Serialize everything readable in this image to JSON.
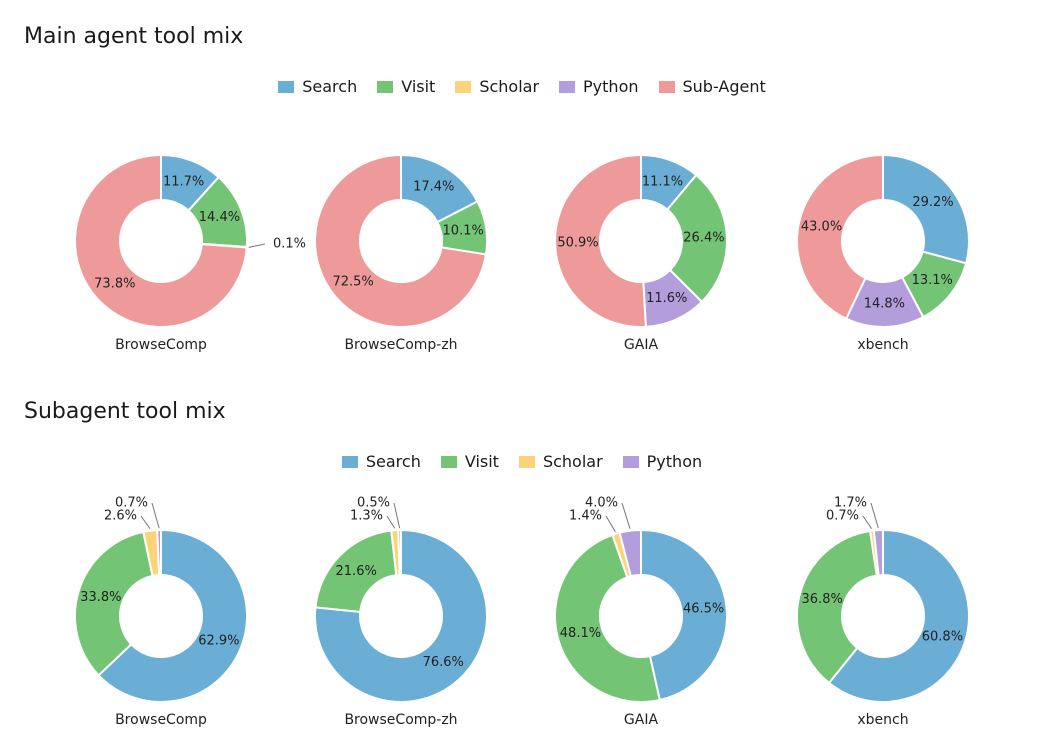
{
  "sections": [
    {
      "title": "Main agent tool mix",
      "legend": [
        {
          "label": "Search",
          "color": "#6aaed6"
        },
        {
          "label": "Visit",
          "color": "#74c476"
        },
        {
          "label": "Scholar",
          "color": "#fdd37a"
        },
        {
          "label": "Python",
          "color": "#b39ddb"
        },
        {
          "label": "Sub-Agent",
          "color": "#ee9a9a"
        }
      ]
    },
    {
      "title": "Subagent tool mix",
      "legend": [
        {
          "label": "Search",
          "color": "#6aaed6"
        },
        {
          "label": "Visit",
          "color": "#74c476"
        },
        {
          "label": "Scholar",
          "color": "#fdd37a"
        },
        {
          "label": "Python",
          "color": "#b39ddb"
        }
      ]
    }
  ],
  "chart_data": [
    {
      "type": "pie",
      "group": "Main agent tool mix",
      "title": "BrowseComp",
      "categories": [
        "Search",
        "Visit",
        "Scholar",
        "Python",
        "Sub-Agent"
      ],
      "values": [
        11.7,
        14.4,
        0.0,
        0.1,
        73.8
      ],
      "labels": [
        "11.7%",
        "14.4%",
        "",
        "0.1%",
        "73.8%"
      ]
    },
    {
      "type": "pie",
      "group": "Main agent tool mix",
      "title": "BrowseComp-zh",
      "categories": [
        "Search",
        "Visit",
        "Scholar",
        "Python",
        "Sub-Agent"
      ],
      "values": [
        17.4,
        10.1,
        0.0,
        0.0,
        72.5
      ],
      "labels": [
        "17.4%",
        "10.1%",
        "",
        "",
        "72.5%"
      ]
    },
    {
      "type": "pie",
      "group": "Main agent tool mix",
      "title": "GAIA",
      "categories": [
        "Search",
        "Visit",
        "Scholar",
        "Python",
        "Sub-Agent"
      ],
      "values": [
        11.1,
        26.4,
        0.0,
        11.6,
        50.9
      ],
      "labels": [
        "11.1%",
        "26.4%",
        "",
        "11.6%",
        "50.9%"
      ]
    },
    {
      "type": "pie",
      "group": "Main agent tool mix",
      "title": "xbench",
      "categories": [
        "Search",
        "Visit",
        "Scholar",
        "Python",
        "Sub-Agent"
      ],
      "values": [
        29.2,
        13.1,
        0.0,
        14.8,
        43.0
      ],
      "labels": [
        "29.2%",
        "13.1%",
        "",
        "14.8%",
        "43.0%"
      ]
    },
    {
      "type": "pie",
      "group": "Subagent tool mix",
      "title": "BrowseComp",
      "categories": [
        "Search",
        "Visit",
        "Scholar",
        "Python"
      ],
      "values": [
        62.9,
        33.8,
        2.6,
        0.7
      ],
      "labels": [
        "62.9%",
        "33.8%",
        "2.6%",
        "0.7%"
      ]
    },
    {
      "type": "pie",
      "group": "Subagent tool mix",
      "title": "BrowseComp-zh",
      "categories": [
        "Search",
        "Visit",
        "Scholar",
        "Python"
      ],
      "values": [
        76.6,
        21.6,
        1.3,
        0.5
      ],
      "labels": [
        "76.6%",
        "21.6%",
        "1.3%",
        "0.5%"
      ]
    },
    {
      "type": "pie",
      "group": "Subagent tool mix",
      "title": "GAIA",
      "categories": [
        "Search",
        "Visit",
        "Scholar",
        "Python"
      ],
      "values": [
        46.5,
        48.1,
        1.4,
        4.0
      ],
      "labels": [
        "46.5%",
        "48.1%",
        "1.4%",
        "4.0%"
      ]
    },
    {
      "type": "pie",
      "group": "Subagent tool mix",
      "title": "xbench",
      "categories": [
        "Search",
        "Visit",
        "Scholar",
        "Python"
      ],
      "values": [
        60.8,
        36.8,
        0.7,
        1.7
      ],
      "labels": [
        "60.8%",
        "36.8%",
        "0.7%",
        "1.7%"
      ]
    }
  ]
}
